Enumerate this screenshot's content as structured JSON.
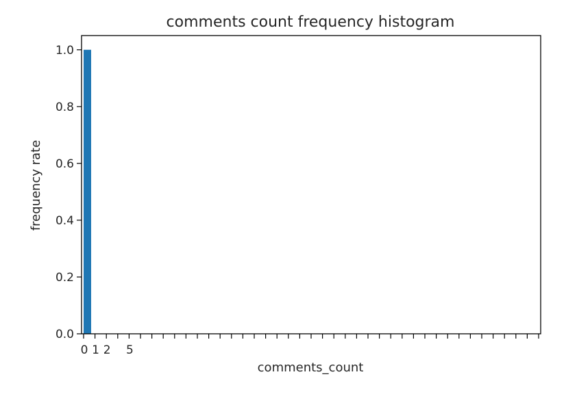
{
  "chart_data": {
    "type": "bar",
    "title": "comments count frequency histogram",
    "xlabel": "comments_count",
    "ylabel": "frequency rate",
    "x_tick_labels": [
      "0",
      "1",
      "2",
      "5"
    ],
    "x_tick_values": [
      0,
      1,
      2,
      5
    ],
    "x_minor_tick_count": 40,
    "categories": [
      "0"
    ],
    "values": [
      1.0
    ],
    "ylim": [
      0,
      1.05
    ],
    "y_ticks": [
      0.0,
      0.2,
      0.4,
      0.6,
      0.8,
      1.0
    ],
    "y_tick_labels": [
      "0.0",
      "0.2",
      "0.4",
      "0.6",
      "0.8",
      "1.0"
    ],
    "grid": false,
    "bar_color": "#1f77b4"
  }
}
